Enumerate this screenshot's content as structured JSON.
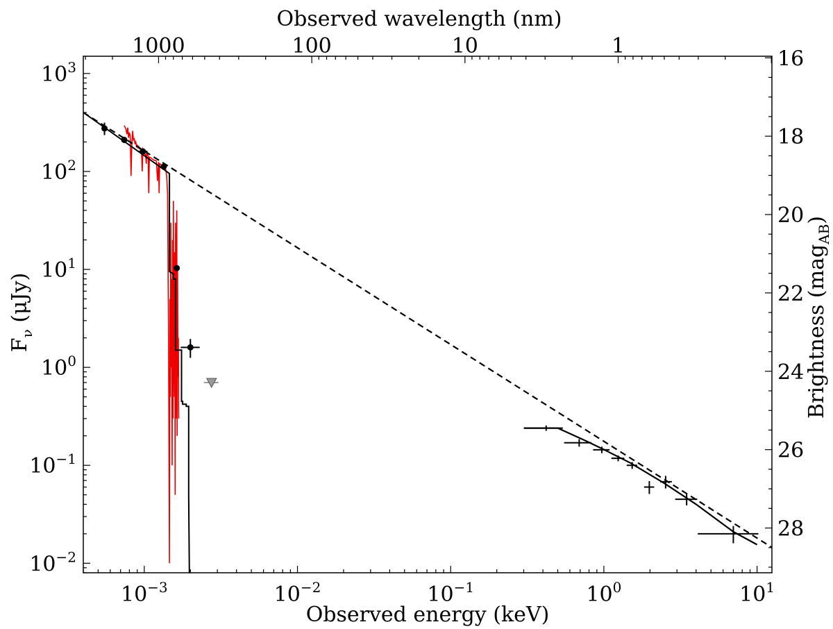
{
  "chart_data": {
    "type": "scatter",
    "x_scale": "log",
    "y_scale": "log",
    "xlim": [
      0.0004,
      12.5
    ],
    "ylim": [
      0.008,
      1500
    ],
    "xlabel": "Observed energy (keV)",
    "ylabel": "F",
    "ylabel_sub": "ν",
    "ylabel_unit": " (μJy)",
    "top_xlabel": "Observed wavelength (nm)",
    "right_ylabel": "Brightness (mag",
    "right_ylabel_sub": "AB",
    "right_ylabel_close": ")",
    "x_ticks": [
      {
        "value": 0.001,
        "base": "10",
        "exp": "−3"
      },
      {
        "value": 0.01,
        "base": "10",
        "exp": "−2"
      },
      {
        "value": 0.1,
        "base": "10",
        "exp": "−1"
      },
      {
        "value": 1,
        "base": "10",
        "exp": "0"
      },
      {
        "value": 10,
        "base": "10",
        "exp": "1"
      }
    ],
    "y_ticks": [
      {
        "value": 0.01,
        "base": "10",
        "exp": "−2"
      },
      {
        "value": 0.1,
        "base": "10",
        "exp": "−1"
      },
      {
        "value": 1,
        "base": "10",
        "exp": "0"
      },
      {
        "value": 10,
        "base": "10",
        "exp": "1"
      },
      {
        "value": 100,
        "base": "10",
        "exp": "2"
      },
      {
        "value": 1000,
        "base": "10",
        "exp": "3"
      }
    ],
    "top_ticks": [
      {
        "wavelength_nm": 1000,
        "label": "1000"
      },
      {
        "wavelength_nm": 100,
        "label": "100"
      },
      {
        "wavelength_nm": 10,
        "label": "10"
      },
      {
        "wavelength_nm": 1,
        "label": "1"
      }
    ],
    "right_ticks": [
      16,
      18,
      20,
      22,
      24,
      26,
      28
    ],
    "series": [
      {
        "kind": "powerlaw_dashed",
        "x": [
          0.0004,
          12.5
        ],
        "y": [
          400,
          0.0145
        ]
      },
      {
        "kind": "optical_detections",
        "x": [
          0.00055,
          0.00074,
          0.00098,
          0.00134,
          0.00163,
          0.002
        ],
        "y": [
          275,
          210,
          160,
          112,
          10.3,
          1.6
        ],
        "x_err_lo": [
          2e-05,
          3e-05,
          7e-05,
          5e-05,
          4e-05,
          0.00027
        ],
        "x_err_hi": [
          2e-05,
          3e-05,
          7e-05,
          5e-05,
          4e-05,
          0.0003
        ],
        "y_err_lo": [
          40,
          15,
          10,
          8,
          0.6,
          0.35
        ],
        "y_err_hi": [
          40,
          15,
          10,
          8,
          0.6,
          0.35
        ]
      },
      {
        "kind": "upper_limit",
        "x": [
          0.00275
        ],
        "y": [
          0.7
        ],
        "x_err_lo": [
          0.0003
        ],
        "x_err_hi": [
          0.0003
        ]
      },
      {
        "kind": "xray",
        "x": [
          0.42,
          0.69,
          0.97,
          1.24,
          1.53,
          1.98,
          2.53,
          3.47,
          7.0
        ],
        "y": [
          0.24,
          0.17,
          0.144,
          0.118,
          0.1,
          0.06,
          0.068,
          0.045,
          0.02
        ],
        "x_err_lo": [
          0.12,
          0.14,
          0.12,
          0.12,
          0.12,
          0.15,
          0.2,
          0.55,
          2.9
        ],
        "x_err_hi": [
          0.12,
          0.14,
          0.12,
          0.12,
          0.12,
          0.15,
          0.25,
          0.6,
          3.2
        ],
        "y_err_lo": [
          0.015,
          0.015,
          0.011,
          0.008,
          0.008,
          0.009,
          0.01,
          0.006,
          0.004
        ],
        "y_err_hi": [
          0.015,
          0.015,
          0.011,
          0.008,
          0.008,
          0.009,
          0.01,
          0.006,
          0.004
        ]
      },
      {
        "kind": "xray_model",
        "x": [
          0.3,
          0.5,
          0.75,
          1.0,
          1.5,
          2.5,
          4.0,
          7.0,
          10.0
        ],
        "y": [
          0.24,
          0.24,
          0.18,
          0.145,
          0.105,
          0.065,
          0.04,
          0.021,
          0.0155
        ]
      },
      {
        "kind": "optical_model",
        "x": [
          0.0004,
          0.00134,
          0.00146,
          0.00146,
          0.00155,
          0.00155,
          0.0016,
          0.0016,
          0.00175,
          0.00175,
          0.00178,
          0.00178,
          0.00188,
          0.00188,
          0.00195,
          0.00195,
          0.00197
        ],
        "y": [
          400,
          105,
          95,
          9.5,
          9.0,
          8.0,
          8.0,
          1.5,
          1.5,
          0.45,
          0.45,
          0.42,
          0.42,
          0.4,
          0.4,
          0.05,
          0.008
        ]
      },
      {
        "kind": "spectrum",
        "color": "#ee0000",
        "x": [
          0.00074,
          0.00076,
          0.00077,
          0.00078,
          0.00079,
          0.0008,
          0.00081,
          0.00082,
          0.00083,
          0.00084,
          0.00085,
          0.00086,
          0.00087,
          0.00088,
          0.00089,
          0.0009,
          0.00091,
          0.00092,
          0.00093,
          0.00094,
          0.00095,
          0.00096,
          0.00097,
          0.00098,
          0.00099,
          0.001,
          0.00101,
          0.00102,
          0.00103,
          0.00104,
          0.00105,
          0.00106,
          0.00107,
          0.00108,
          0.0011,
          0.00112,
          0.00114,
          0.00116,
          0.00118,
          0.0012,
          0.00122,
          0.00124,
          0.00125,
          0.00126,
          0.00128,
          0.0013,
          0.00132,
          0.00134,
          0.00136,
          0.00138,
          0.0014,
          0.00142,
          0.00144,
          0.00146,
          0.00147,
          0.00148,
          0.00149,
          0.0015,
          0.00151,
          0.00152,
          0.00153,
          0.00154,
          0.00155,
          0.00156,
          0.00157,
          0.00158,
          0.00159,
          0.0016,
          0.00161,
          0.00162,
          0.00163,
          0.00164,
          0.00165,
          0.00166,
          0.00167,
          0.00168
        ],
        "y": [
          295,
          270,
          240,
          280,
          220,
          250,
          230,
          90,
          200,
          260,
          210,
          215,
          190,
          200,
          180,
          185,
          175,
          180,
          170,
          172,
          165,
          160,
          100,
          170,
          165,
          160,
          150,
          150,
          120,
          155,
          150,
          145,
          60,
          140,
          138,
          135,
          133,
          130,
          130,
          128,
          80,
          125,
          60,
          120,
          118,
          115,
          113,
          112,
          108,
          105,
          90,
          60,
          2,
          0.01,
          5,
          0.5,
          30,
          1,
          8,
          0.1,
          20,
          0.3,
          50,
          2,
          0.5,
          15,
          0.05,
          30,
          0.3,
          3,
          40,
          0.2,
          10,
          0.8,
          2,
          0.3
        ]
      }
    ]
  }
}
